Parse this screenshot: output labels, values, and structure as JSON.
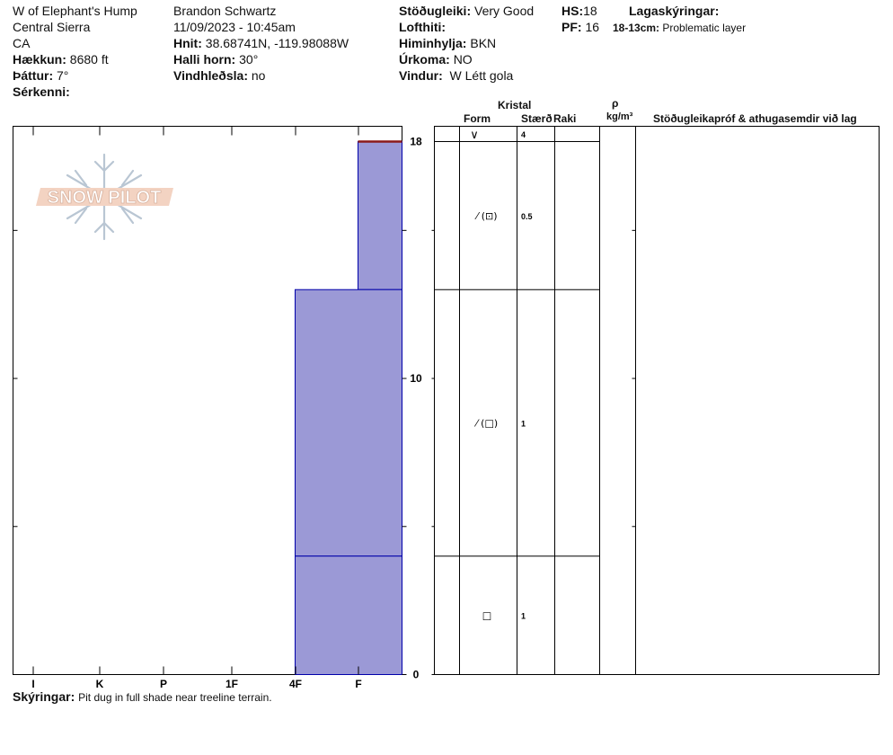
{
  "header": {
    "location": "W of Elephant's Hump",
    "range": "Central Sierra",
    "state": "CA",
    "elevation": {
      "label": "Hækkun:",
      "value": "8680 ft"
    },
    "aspect": {
      "label": "Þáttur:",
      "value": "7°"
    },
    "features": {
      "label": "Sérkenni:",
      "value": ""
    },
    "observer": "Brandon Schwartz",
    "datetime": "11/09/2023 - 10:45am",
    "coords": {
      "label": "Hnit:",
      "value": "38.68741N, -119.98088W"
    },
    "slope": {
      "label": "Halli horn:",
      "value": "30°"
    },
    "wind_loading": {
      "label": "Vindhleðsla:",
      "value": "no"
    },
    "stability": {
      "label": "Stöðugleiki:",
      "value": "Very Good"
    },
    "air_temp": {
      "label": "Lofthiti:",
      "value": ""
    },
    "sky": {
      "label": "Himinhylja:",
      "value": "BKN"
    },
    "precip": {
      "label": "Úrkoma:",
      "value": "NO"
    },
    "wind": {
      "label": "Vindur:",
      "value": "W Létt gola"
    },
    "hs": {
      "label": "HS:",
      "value": "18"
    },
    "pf": {
      "label": "PF:",
      "value": "16"
    },
    "legend_title": "Lagaskýringar:",
    "legend_range": "18-13cm:",
    "legend_text": "Problematic layer"
  },
  "logo": {
    "text": "SNOW PILOT"
  },
  "table": {
    "crystal_label": "Kristal",
    "form_label": "Form",
    "size_label": "Stærð",
    "moisture_label": "Raki",
    "rho_label": "ρ",
    "density_unit": "kg/m³",
    "comments_label": "Stöðugleikapróf & athugasemdir við lag"
  },
  "comments": {
    "label": "Skýringar:",
    "text": "Pit dug in full shade near treeline terrain."
  },
  "chart_data": {
    "type": "step-profile",
    "title": "",
    "xlabel": "",
    "ylabel": "",
    "x_categories": [
      "I",
      "K",
      "P",
      "1F",
      "4F",
      "F"
    ],
    "y_ticks": [
      "0",
      "10",
      "18"
    ],
    "ylim": [
      0,
      18
    ],
    "fill_color": "#9b99d6",
    "outline_color": "#0000aa",
    "surface_marker_color": "#8b1a1a",
    "layers": [
      {
        "top": 18,
        "bottom": 13,
        "hardness": "F",
        "form": "⁄ (⊡)",
        "size": "0.5",
        "problematic": true
      },
      {
        "top": 13,
        "bottom": 4,
        "hardness": "4F",
        "form": "⁄ (□)",
        "size": "1",
        "problematic": false
      },
      {
        "top": 4,
        "bottom": 0,
        "hardness": "4F",
        "form": "□",
        "size": "1",
        "problematic": false
      }
    ],
    "surface": {
      "height": 18,
      "form": "∨",
      "size": "4"
    }
  }
}
